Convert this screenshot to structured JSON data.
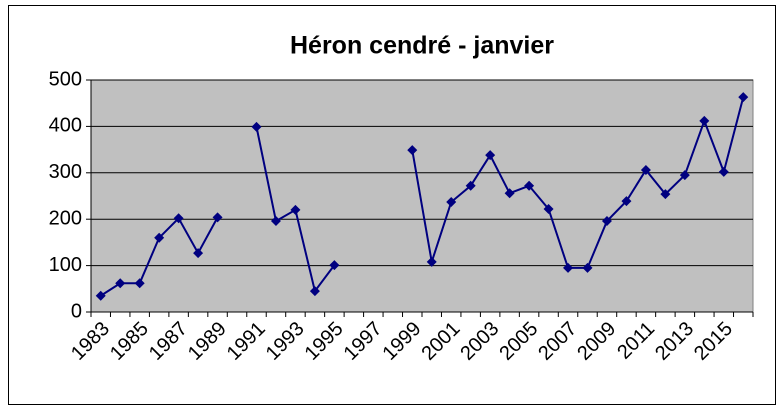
{
  "chart_data": {
    "type": "line",
    "title": "Héron cendré - janvier",
    "categories": [
      "1983",
      null,
      "1985",
      null,
      "1987",
      null,
      "1989",
      null,
      "1991",
      null,
      "1993",
      null,
      "1995",
      null,
      "1997",
      null,
      "1999",
      null,
      "2001",
      null,
      "2003",
      null,
      "2005",
      null,
      "2007",
      null,
      "2009",
      null,
      "2011",
      null,
      "2013",
      null,
      "2015",
      null
    ],
    "series": [
      {
        "color": "#000080",
        "values": [
          35,
          62,
          62,
          160,
          202,
          127,
          204,
          null,
          399,
          196,
          220,
          45,
          101,
          null,
          null,
          null,
          349,
          108,
          237,
          272,
          338,
          256,
          272,
          222,
          95,
          95,
          196,
          239,
          306,
          254,
          295,
          412,
          302,
          463
        ]
      }
    ],
    "ylim": [
      0,
      500
    ],
    "yticks": [
      0,
      100,
      200,
      300,
      400,
      500
    ],
    "grid": true,
    "plot_background": "#c0c0c0"
  }
}
